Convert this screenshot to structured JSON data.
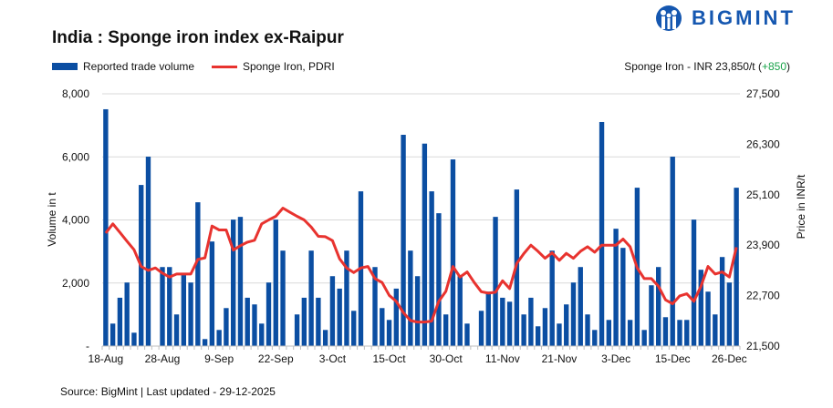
{
  "brand": {
    "name": "BIGMINT",
    "logo_icon": "bigmint-people-icon",
    "color": "#1557b0"
  },
  "header": {
    "title": "India : Sponge iron index ex-Raipur",
    "summary_prefix": "Sponge Iron - INR 23,850/t (",
    "summary_change": "+850",
    "summary_suffix": ")",
    "change_color": "#1aa34a"
  },
  "legend": [
    {
      "label": "Reported trade volume",
      "color": "#0b4ea2",
      "kind": "bar"
    },
    {
      "label": "Sponge Iron, PDRI",
      "color": "#e8332f",
      "kind": "line"
    }
  ],
  "footer": {
    "source": "Source: BigMint | Last updated - 29-12-2025"
  },
  "chart_data": {
    "type": "bar+line",
    "title": "India : Sponge iron index ex-Raipur",
    "ylabel": "Volume in t",
    "y2label": "Price in INR/t",
    "ylim": [
      0,
      8000
    ],
    "y_ticks": [
      "-",
      "2,000",
      "4,000",
      "6,000",
      "8,000"
    ],
    "y2lim": [
      21500,
      27500
    ],
    "y2_ticks": [
      "21,500",
      "22,700",
      "23,900",
      "25,100",
      "26,300",
      "27,500"
    ],
    "grid": true,
    "legend_position": "top-left",
    "x_tick_labels": [
      "18-Aug",
      "28-Aug",
      "9-Sep",
      "22-Sep",
      "3-Oct",
      "15-Oct",
      "30-Oct",
      "11-Nov",
      "21-Nov",
      "3-Dec",
      "15-Dec",
      "26-Dec"
    ],
    "x_tick_every": 8,
    "series": [
      {
        "name": "Reported trade volume",
        "type": "bar",
        "axis": "left",
        "color": "#0b4ea2",
        "values": [
          7510,
          713,
          1533,
          2015,
          424,
          5109,
          6006,
          null,
          2506,
          2506,
          1003,
          2285,
          2015,
          4560,
          222,
          3316,
          511,
          1205,
          4010,
          4097,
          1533,
          1321,
          713,
          2015,
          4010,
          3027,
          null,
          1003,
          1533,
          3027,
          1533,
          511,
          2217,
          1822,
          3027,
          1118,
          4907,
          null,
          2506,
          1205,
          829,
          1822,
          6700,
          3027,
          2217,
          6420,
          4907,
          4213,
          1003,
          5919,
          2217,
          713,
          null,
          1118,
          1726,
          4097,
          1533,
          1407,
          4965,
          1003,
          1533,
          627,
          1205,
          3027,
          713,
          1321,
          2015,
          2506,
          1003,
          511,
          7105,
          829,
          3721,
          3114,
          829,
          5022,
          511,
          1928,
          2506,
          916,
          6006,
          829,
          829,
          4010,
          2420,
          1726,
          1003,
          2824,
          2015,
          5022
        ]
      },
      {
        "name": "Sponge Iron, PDRI",
        "type": "line",
        "axis": "right",
        "color": "#e8332f",
        "values": [
          24189,
          24406,
          24204,
          23994,
          23792,
          23394,
          23300,
          23358,
          23235,
          23141,
          23213,
          23213,
          23213,
          23560,
          23596,
          24355,
          24261,
          24261,
          23784,
          23886,
          23972,
          24016,
          24406,
          24500,
          24587,
          24782,
          24681,
          24587,
          24500,
          24330,
          24110,
          24102,
          24008,
          23575,
          23358,
          23249,
          23358,
          23394,
          23105,
          23011,
          22707,
          22563,
          22295,
          22107,
          22071,
          22071,
          22093,
          22563,
          22801,
          23394,
          23141,
          23264,
          23011,
          22794,
          22758,
          22780,
          23054,
          22866,
          23466,
          23698,
          23900,
          23755,
          23589,
          23719,
          23539,
          23705,
          23589,
          23755,
          23864,
          23734,
          23900,
          23900,
          23900,
          24045,
          23864,
          23358,
          23105,
          23105,
          22924,
          22599,
          22505,
          22693,
          22743,
          22563,
          22924,
          23394,
          23213,
          23264,
          23141,
          23850
        ]
      }
    ]
  }
}
